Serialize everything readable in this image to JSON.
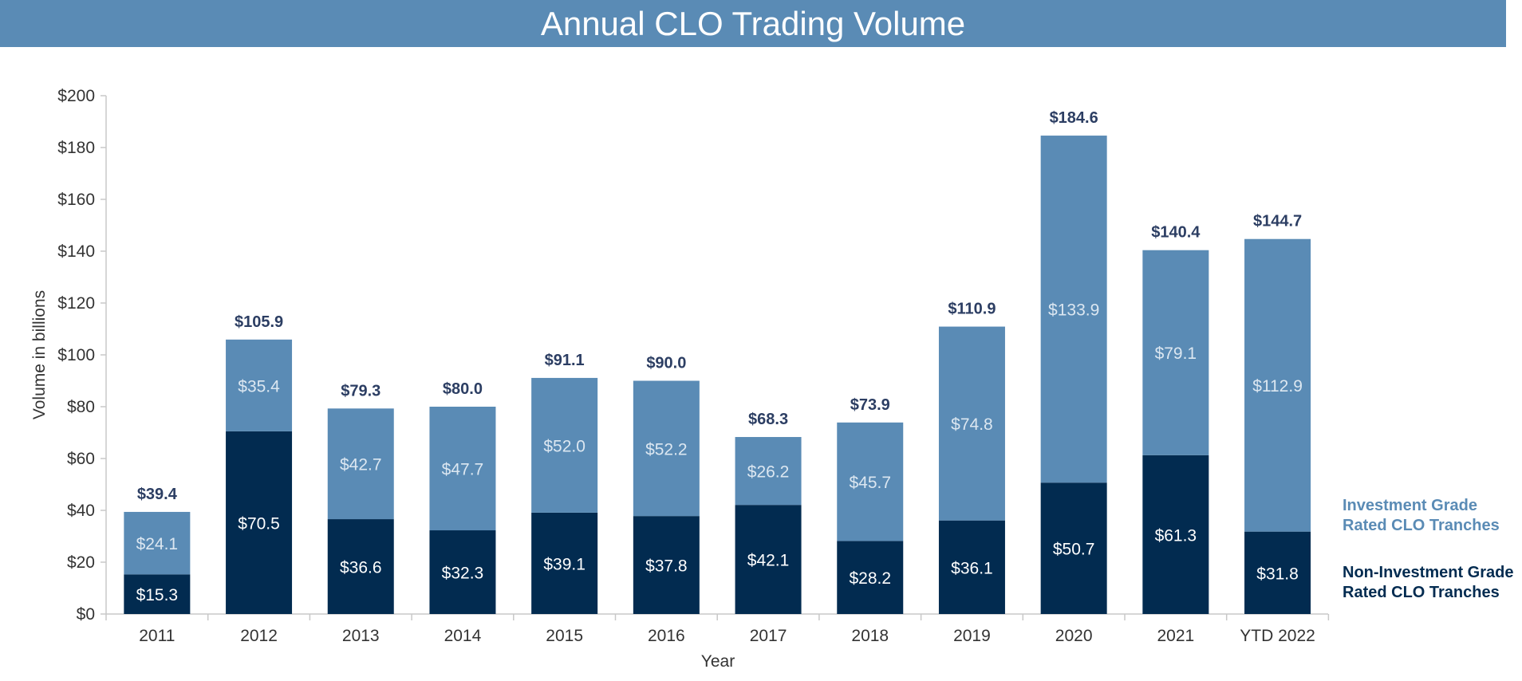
{
  "title": "Annual CLO Trading Volume",
  "colors": {
    "title_bar": "#5a8bb5",
    "investment_grade": "#5a8bb5",
    "non_investment_grade": "#022b50",
    "total_label": "#2c3e63",
    "ig_value_label": "#dce7f1",
    "nig_value_label": "#ffffff"
  },
  "chart_data": {
    "type": "bar",
    "stacked": true,
    "title": "Annual CLO Trading Volume",
    "xlabel": "Year",
    "ylabel": "Volume in billions",
    "ylim": [
      0,
      200
    ],
    "yticks": [
      0,
      20,
      40,
      60,
      80,
      100,
      120,
      140,
      160,
      180,
      200
    ],
    "ytick_labels": [
      "$0",
      "$20",
      "$40",
      "$60",
      "$80",
      "$100",
      "$120",
      "$140",
      "$160",
      "$180",
      "$200"
    ],
    "categories": [
      "2011",
      "2012",
      "2013",
      "2014",
      "2015",
      "2016",
      "2017",
      "2018",
      "2019",
      "2020",
      "2021",
      "YTD 2022"
    ],
    "series": [
      {
        "name": "Non-Investment Grade Rated CLO Tranches",
        "values": [
          15.3,
          70.5,
          36.6,
          32.3,
          39.1,
          37.8,
          42.1,
          28.2,
          36.1,
          50.7,
          61.3,
          31.8
        ],
        "labels": [
          "$15.3",
          "$70.5",
          "$36.6",
          "$32.3",
          "$39.1",
          "$37.8",
          "$42.1",
          "$28.2",
          "$36.1",
          "$50.7",
          "$61.3",
          "$31.8"
        ]
      },
      {
        "name": "Investment Grade Rated CLO Tranches",
        "values": [
          24.1,
          35.4,
          42.7,
          47.7,
          52.0,
          52.2,
          26.2,
          45.7,
          74.8,
          133.9,
          79.1,
          112.9
        ],
        "labels": [
          "$24.1",
          "$35.4",
          "$42.7",
          "$47.7",
          "$52.0",
          "$52.2",
          "$26.2",
          "$45.7",
          "$74.8",
          "$133.9",
          "$79.1",
          "$112.9"
        ]
      }
    ],
    "totals": [
      39.4,
      105.9,
      79.3,
      80.0,
      91.1,
      90.0,
      68.3,
      73.9,
      110.9,
      184.6,
      140.4,
      144.7
    ],
    "total_labels": [
      "$39.4",
      "$105.9",
      "$79.3",
      "$80.0",
      "$91.1",
      "$90.0",
      "$68.3",
      "$73.9",
      "$110.9",
      "$184.6",
      "$140.4",
      "$144.7"
    ],
    "legend": {
      "position": "right",
      "investment_grade": "Investment Grade Rated CLO Tranches",
      "non_investment_grade": "Non-Investment Grade Rated CLO Tranches"
    },
    "grid": false
  }
}
